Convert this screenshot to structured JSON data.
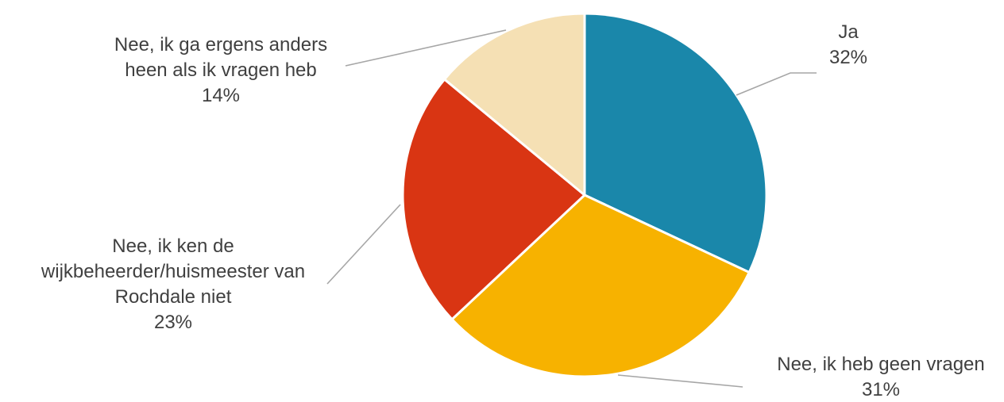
{
  "chart_data": {
    "type": "pie",
    "title": "",
    "start_angle_deg": 0,
    "direction": "clockwise",
    "slices": [
      {
        "label_lines": [
          "Ja"
        ],
        "value": 32,
        "value_label": "32%",
        "color": "#1a87aa"
      },
      {
        "label_lines": [
          "Nee, ik heb geen vragen"
        ],
        "value": 31,
        "value_label": "31%",
        "color": "#f7b200"
      },
      {
        "label_lines": [
          "Nee, ik ken de",
          "wijkbeheerder/huismeester van",
          "Rochdale niet"
        ],
        "value": 23,
        "value_label": "23%",
        "color": "#d93513"
      },
      {
        "label_lines": [
          "Nee, ik ga ergens anders",
          "heen als ik vragen heb"
        ],
        "value": 14,
        "value_label": "14%",
        "color": "#f5e0b4"
      }
    ],
    "legend": "none",
    "label_style": "outside with leader lines"
  }
}
